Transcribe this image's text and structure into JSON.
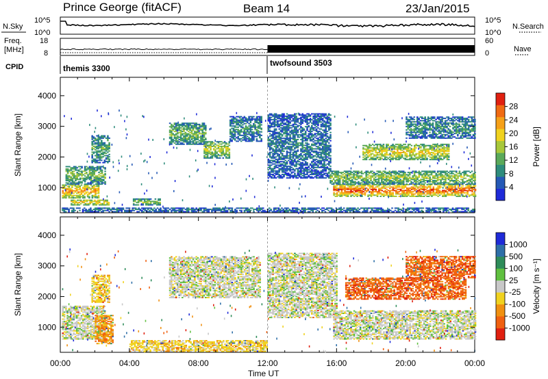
{
  "header": {
    "station": "Prince George (fitACF)",
    "beam": "Beam 14",
    "date": "23/Jan/2015"
  },
  "noise_panel": {
    "left_label": "N.Sky",
    "right_label": "N.Search",
    "ticks_left": [
      "10^5",
      "10^0"
    ],
    "ticks_right": [
      "10^5",
      "10^0"
    ]
  },
  "freq_panel": {
    "left_label_1": "Freq.",
    "left_label_2": "[MHz]",
    "right_label": "Nave",
    "ticks_left": [
      "18",
      "8"
    ],
    "ticks_right": [
      "60",
      "0"
    ]
  },
  "cpid": {
    "label": "CPID",
    "modes": [
      {
        "name": "themis 3300",
        "start": "00:00"
      },
      {
        "name": "twofsound 3503",
        "start": "12:00"
      }
    ]
  },
  "chart_data": [
    {
      "type": "heatmap",
      "quantity": "Power",
      "ylabel": "Slant Range [km]",
      "xlabel": "Time UT",
      "x_ticks": [
        "00:00",
        "04:00",
        "08:00",
        "12:00",
        "16:00",
        "20:00",
        "00:00"
      ],
      "y_ticks": [
        1000,
        2000,
        3000,
        4000
      ],
      "ylim": [
        180,
        4600
      ],
      "xlim_hours": [
        0,
        24
      ],
      "colorbar": {
        "label": "Power [dB]",
        "ticks": [
          4,
          8,
          12,
          16,
          20,
          24,
          28
        ],
        "range": [
          0,
          32
        ],
        "colors": [
          "#1f2bd8",
          "#2559b6",
          "#2e8c7c",
          "#5aa95a",
          "#a8c83a",
          "#f0d21f",
          "#f5a018",
          "#f06a12",
          "#e02010"
        ]
      },
      "bands": [
        {
          "t0": 0.1,
          "t1": 2.2,
          "r0": 650,
          "r1": 1100,
          "level": 22
        },
        {
          "t0": 0.3,
          "t1": 2.6,
          "r0": 1100,
          "r1": 1700,
          "level": 12
        },
        {
          "t0": 1.8,
          "t1": 2.8,
          "r0": 1800,
          "r1": 2700,
          "level": 10
        },
        {
          "t0": 0.6,
          "t1": 2.8,
          "r0": 420,
          "r1": 600,
          "level": 20
        },
        {
          "t0": 4.2,
          "t1": 5.8,
          "r0": 420,
          "r1": 620,
          "level": 14
        },
        {
          "t0": 6.3,
          "t1": 8.4,
          "r0": 2400,
          "r1": 3100,
          "level": 12
        },
        {
          "t0": 8.3,
          "t1": 9.8,
          "r0": 1950,
          "r1": 2500,
          "level": 16
        },
        {
          "t0": 9.8,
          "t1": 11.6,
          "r0": 2500,
          "r1": 3300,
          "level": 8
        },
        {
          "t0": 12.0,
          "t1": 15.6,
          "r0": 1300,
          "r1": 3400,
          "level": 6
        },
        {
          "t0": 15.8,
          "t1": 24.0,
          "r0": 700,
          "r1": 1100,
          "level": 26
        },
        {
          "t0": 15.6,
          "t1": 24.0,
          "r0": 1100,
          "r1": 1550,
          "level": 14
        },
        {
          "t0": 17.5,
          "t1": 22.5,
          "r0": 1900,
          "r1": 2400,
          "level": 18
        },
        {
          "t0": 20.0,
          "t1": 24.0,
          "r0": 2600,
          "r1": 3300,
          "level": 8
        },
        {
          "t0": 0.0,
          "t1": 24.0,
          "r0": 200,
          "r1": 330,
          "level": 6
        }
      ]
    },
    {
      "type": "heatmap",
      "quantity": "Velocity",
      "ylabel": "Slant Range [km]",
      "xlabel": "Time UT",
      "x_ticks": [
        "00:00",
        "04:00",
        "08:00",
        "12:00",
        "16:00",
        "20:00",
        "00:00"
      ],
      "y_ticks": [
        1000,
        2000,
        3000,
        4000
      ],
      "ylim": [
        180,
        4600
      ],
      "xlim_hours": [
        0,
        24
      ],
      "colorbar": {
        "label": "Velocity [m s⁻¹]",
        "ticks": [
          "1000",
          "500",
          "100",
          "25",
          "-25",
          "-100",
          "-500",
          "-1000"
        ],
        "colors": [
          "#1f2bd8",
          "#2e6fa8",
          "#2e8c5a",
          "#60c040",
          "#c8c8c8",
          "#f0d21f",
          "#f09010",
          "#f06010",
          "#e02010"
        ]
      },
      "bands": [
        {
          "t0": 0.1,
          "t1": 2.6,
          "r0": 600,
          "r1": 1700,
          "level": 4
        },
        {
          "t0": 2.0,
          "t1": 3.0,
          "r0": 450,
          "r1": 1400,
          "level": 6
        },
        {
          "t0": 1.8,
          "t1": 2.8,
          "r0": 1800,
          "r1": 2700,
          "level": 5
        },
        {
          "t0": 4.0,
          "t1": 12.0,
          "r0": 200,
          "r1": 560,
          "level": 5
        },
        {
          "t0": 6.3,
          "t1": 11.6,
          "r0": 1950,
          "r1": 3300,
          "level": 4
        },
        {
          "t0": 12.0,
          "t1": 16.0,
          "r0": 1300,
          "r1": 3400,
          "level": 4
        },
        {
          "t0": 15.8,
          "t1": 24.0,
          "r0": 600,
          "r1": 1550,
          "level": 4
        },
        {
          "t0": 16.5,
          "t1": 23.5,
          "r0": 1900,
          "r1": 2600,
          "level": 7
        },
        {
          "t0": 20.0,
          "t1": 24.0,
          "r0": 2600,
          "r1": 3300,
          "level": 7
        }
      ]
    }
  ]
}
